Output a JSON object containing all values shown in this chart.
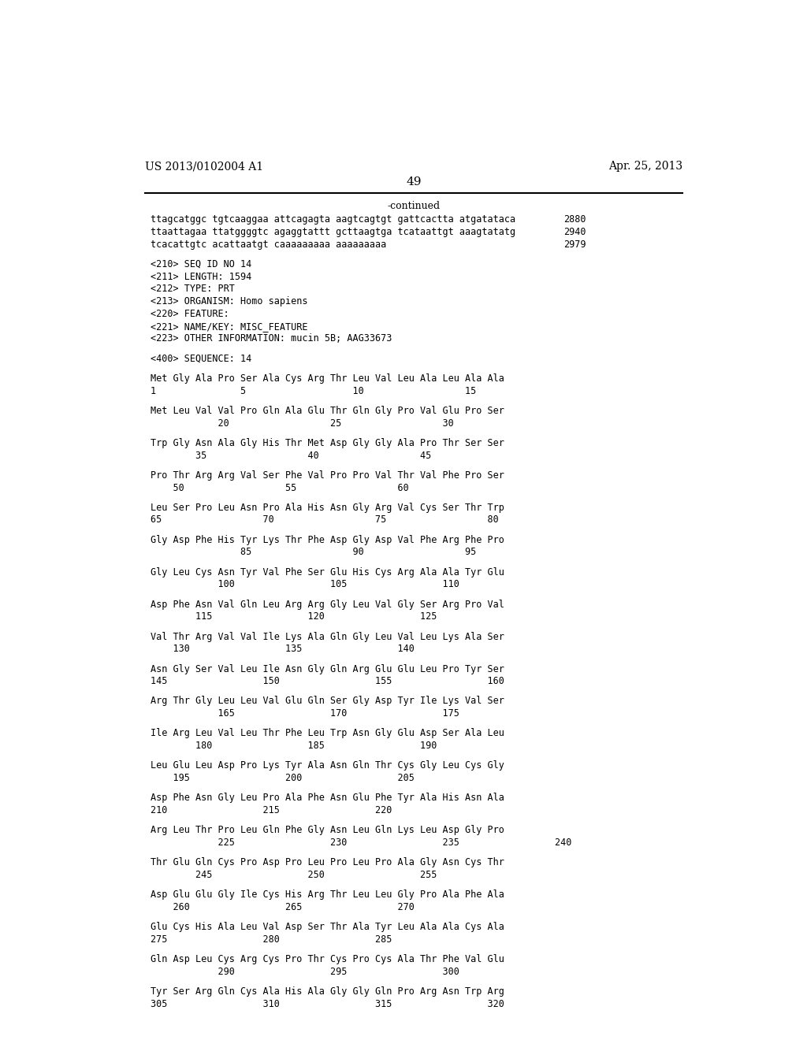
{
  "background_color": "#ffffff",
  "top_left_text": "US 2013/0102004 A1",
  "top_right_text": "Apr. 25, 2013",
  "page_number": "49",
  "continued_label": "-continued",
  "font_size": 8.5,
  "monospace_font": "DejaVu Sans Mono",
  "serif_font": "DejaVu Serif",
  "lines": [
    {
      "text": "ttagcatggc tgtcaaggaa attcagagta aagtcagtgt gattcactta atgatataca",
      "number": "2880"
    },
    {
      "text": "ttaattagaa ttatggggtc agaggtattt gcttaagtga tcataattgt aaagtatatg",
      "number": "2940"
    },
    {
      "text": "tcacattgtc acattaatgt caaaaaaaaa aaaaaaaaa",
      "number": "2979"
    },
    {
      "text": "",
      "number": ""
    },
    {
      "text": "<210> SEQ ID NO 14",
      "number": ""
    },
    {
      "text": "<211> LENGTH: 1594",
      "number": ""
    },
    {
      "text": "<212> TYPE: PRT",
      "number": ""
    },
    {
      "text": "<213> ORGANISM: Homo sapiens",
      "number": ""
    },
    {
      "text": "<220> FEATURE:",
      "number": ""
    },
    {
      "text": "<221> NAME/KEY: MISC_FEATURE",
      "number": ""
    },
    {
      "text": "<223> OTHER INFORMATION: mucin 5B; AAG33673",
      "number": ""
    },
    {
      "text": "",
      "number": ""
    },
    {
      "text": "<400> SEQUENCE: 14",
      "number": ""
    },
    {
      "text": "",
      "number": ""
    },
    {
      "text": "Met Gly Ala Pro Ser Ala Cys Arg Thr Leu Val Leu Ala Leu Ala Ala",
      "number": ""
    },
    {
      "text": "1               5                   10                  15",
      "number": ""
    },
    {
      "text": "",
      "number": ""
    },
    {
      "text": "Met Leu Val Val Pro Gln Ala Glu Thr Gln Gly Pro Val Glu Pro Ser",
      "number": ""
    },
    {
      "text": "            20                  25                  30",
      "number": ""
    },
    {
      "text": "",
      "number": ""
    },
    {
      "text": "Trp Gly Asn Ala Gly His Thr Met Asp Gly Gly Ala Pro Thr Ser Ser",
      "number": ""
    },
    {
      "text": "        35                  40                  45",
      "number": ""
    },
    {
      "text": "",
      "number": ""
    },
    {
      "text": "Pro Thr Arg Arg Val Ser Phe Val Pro Pro Val Thr Val Phe Pro Ser",
      "number": ""
    },
    {
      "text": "    50                  55                  60",
      "number": ""
    },
    {
      "text": "",
      "number": ""
    },
    {
      "text": "Leu Ser Pro Leu Asn Pro Ala His Asn Gly Arg Val Cys Ser Thr Trp",
      "number": ""
    },
    {
      "text": "65                  70                  75                  80",
      "number": ""
    },
    {
      "text": "",
      "number": ""
    },
    {
      "text": "Gly Asp Phe His Tyr Lys Thr Phe Asp Gly Asp Val Phe Arg Phe Pro",
      "number": ""
    },
    {
      "text": "                85                  90                  95",
      "number": ""
    },
    {
      "text": "",
      "number": ""
    },
    {
      "text": "Gly Leu Cys Asn Tyr Val Phe Ser Glu His Cys Arg Ala Ala Tyr Glu",
      "number": ""
    },
    {
      "text": "            100                 105                 110",
      "number": ""
    },
    {
      "text": "",
      "number": ""
    },
    {
      "text": "Asp Phe Asn Val Gln Leu Arg Arg Gly Leu Val Gly Ser Arg Pro Val",
      "number": ""
    },
    {
      "text": "        115                 120                 125",
      "number": ""
    },
    {
      "text": "",
      "number": ""
    },
    {
      "text": "Val Thr Arg Val Val Ile Lys Ala Gln Gly Leu Val Leu Lys Ala Ser",
      "number": ""
    },
    {
      "text": "    130                 135                 140",
      "number": ""
    },
    {
      "text": "",
      "number": ""
    },
    {
      "text": "Asn Gly Ser Val Leu Ile Asn Gly Gln Arg Glu Glu Leu Pro Tyr Ser",
      "number": ""
    },
    {
      "text": "145                 150                 155                 160",
      "number": ""
    },
    {
      "text": "",
      "number": ""
    },
    {
      "text": "Arg Thr Gly Leu Leu Val Glu Gln Ser Gly Asp Tyr Ile Lys Val Ser",
      "number": ""
    },
    {
      "text": "            165                 170                 175",
      "number": ""
    },
    {
      "text": "",
      "number": ""
    },
    {
      "text": "Ile Arg Leu Val Leu Thr Phe Leu Trp Asn Gly Glu Asp Ser Ala Leu",
      "number": ""
    },
    {
      "text": "        180                 185                 190",
      "number": ""
    },
    {
      "text": "",
      "number": ""
    },
    {
      "text": "Leu Glu Leu Asp Pro Lys Tyr Ala Asn Gln Thr Cys Gly Leu Cys Gly",
      "number": ""
    },
    {
      "text": "    195                 200                 205",
      "number": ""
    },
    {
      "text": "",
      "number": ""
    },
    {
      "text": "Asp Phe Asn Gly Leu Pro Ala Phe Asn Glu Phe Tyr Ala His Asn Ala",
      "number": ""
    },
    {
      "text": "210                 215                 220",
      "number": ""
    },
    {
      "text": "",
      "number": ""
    },
    {
      "text": "Arg Leu Thr Pro Leu Gln Phe Gly Asn Leu Gln Lys Leu Asp Gly Pro",
      "number": ""
    },
    {
      "text": "            225                 230                 235                 240",
      "number": ""
    },
    {
      "text": "",
      "number": ""
    },
    {
      "text": "Thr Glu Gln Cys Pro Asp Pro Leu Pro Leu Pro Ala Gly Asn Cys Thr",
      "number": ""
    },
    {
      "text": "        245                 250                 255",
      "number": ""
    },
    {
      "text": "",
      "number": ""
    },
    {
      "text": "Asp Glu Glu Gly Ile Cys His Arg Thr Leu Leu Gly Pro Ala Phe Ala",
      "number": ""
    },
    {
      "text": "    260                 265                 270",
      "number": ""
    },
    {
      "text": "",
      "number": ""
    },
    {
      "text": "Glu Cys His Ala Leu Val Asp Ser Thr Ala Tyr Leu Ala Ala Cys Ala",
      "number": ""
    },
    {
      "text": "275                 280                 285",
      "number": ""
    },
    {
      "text": "",
      "number": ""
    },
    {
      "text": "Gln Asp Leu Cys Arg Cys Pro Thr Cys Pro Cys Ala Thr Phe Val Glu",
      "number": ""
    },
    {
      "text": "            290                 295                 300",
      "number": ""
    },
    {
      "text": "",
      "number": ""
    },
    {
      "text": "Tyr Ser Arg Gln Cys Ala His Ala Gly Gly Gln Pro Arg Asn Trp Arg",
      "number": ""
    },
    {
      "text": "305                 310                 315                 320",
      "number": ""
    }
  ]
}
